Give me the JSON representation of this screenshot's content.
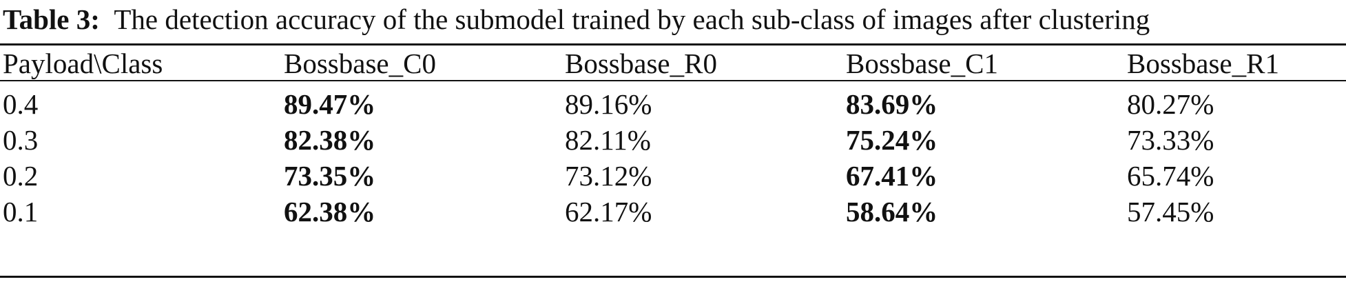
{
  "caption": {
    "label": "Table 3:",
    "text": "The detection accuracy of the submodel trained by each sub-class of images after clustering"
  },
  "table": {
    "headers": [
      "Payload\\Class",
      "Bossbase_C0",
      "Bossbase_R0",
      "Bossbase_C1",
      "Bossbase_R1"
    ],
    "rows": [
      {
        "payload": "0.4",
        "cells": [
          "89.47%",
          "89.16%",
          "83.69%",
          "80.27%"
        ]
      },
      {
        "payload": "0.3",
        "cells": [
          "82.38%",
          "82.11%",
          "75.24%",
          "73.33%"
        ]
      },
      {
        "payload": "0.2",
        "cells": [
          "73.35%",
          "73.12%",
          "67.41%",
          "65.74%"
        ]
      },
      {
        "payload": "0.1",
        "cells": [
          "62.38%",
          "62.17%",
          "58.64%",
          "57.45%"
        ]
      }
    ],
    "bold_columns": [
      "Bossbase_C0",
      "Bossbase_C1"
    ]
  }
}
